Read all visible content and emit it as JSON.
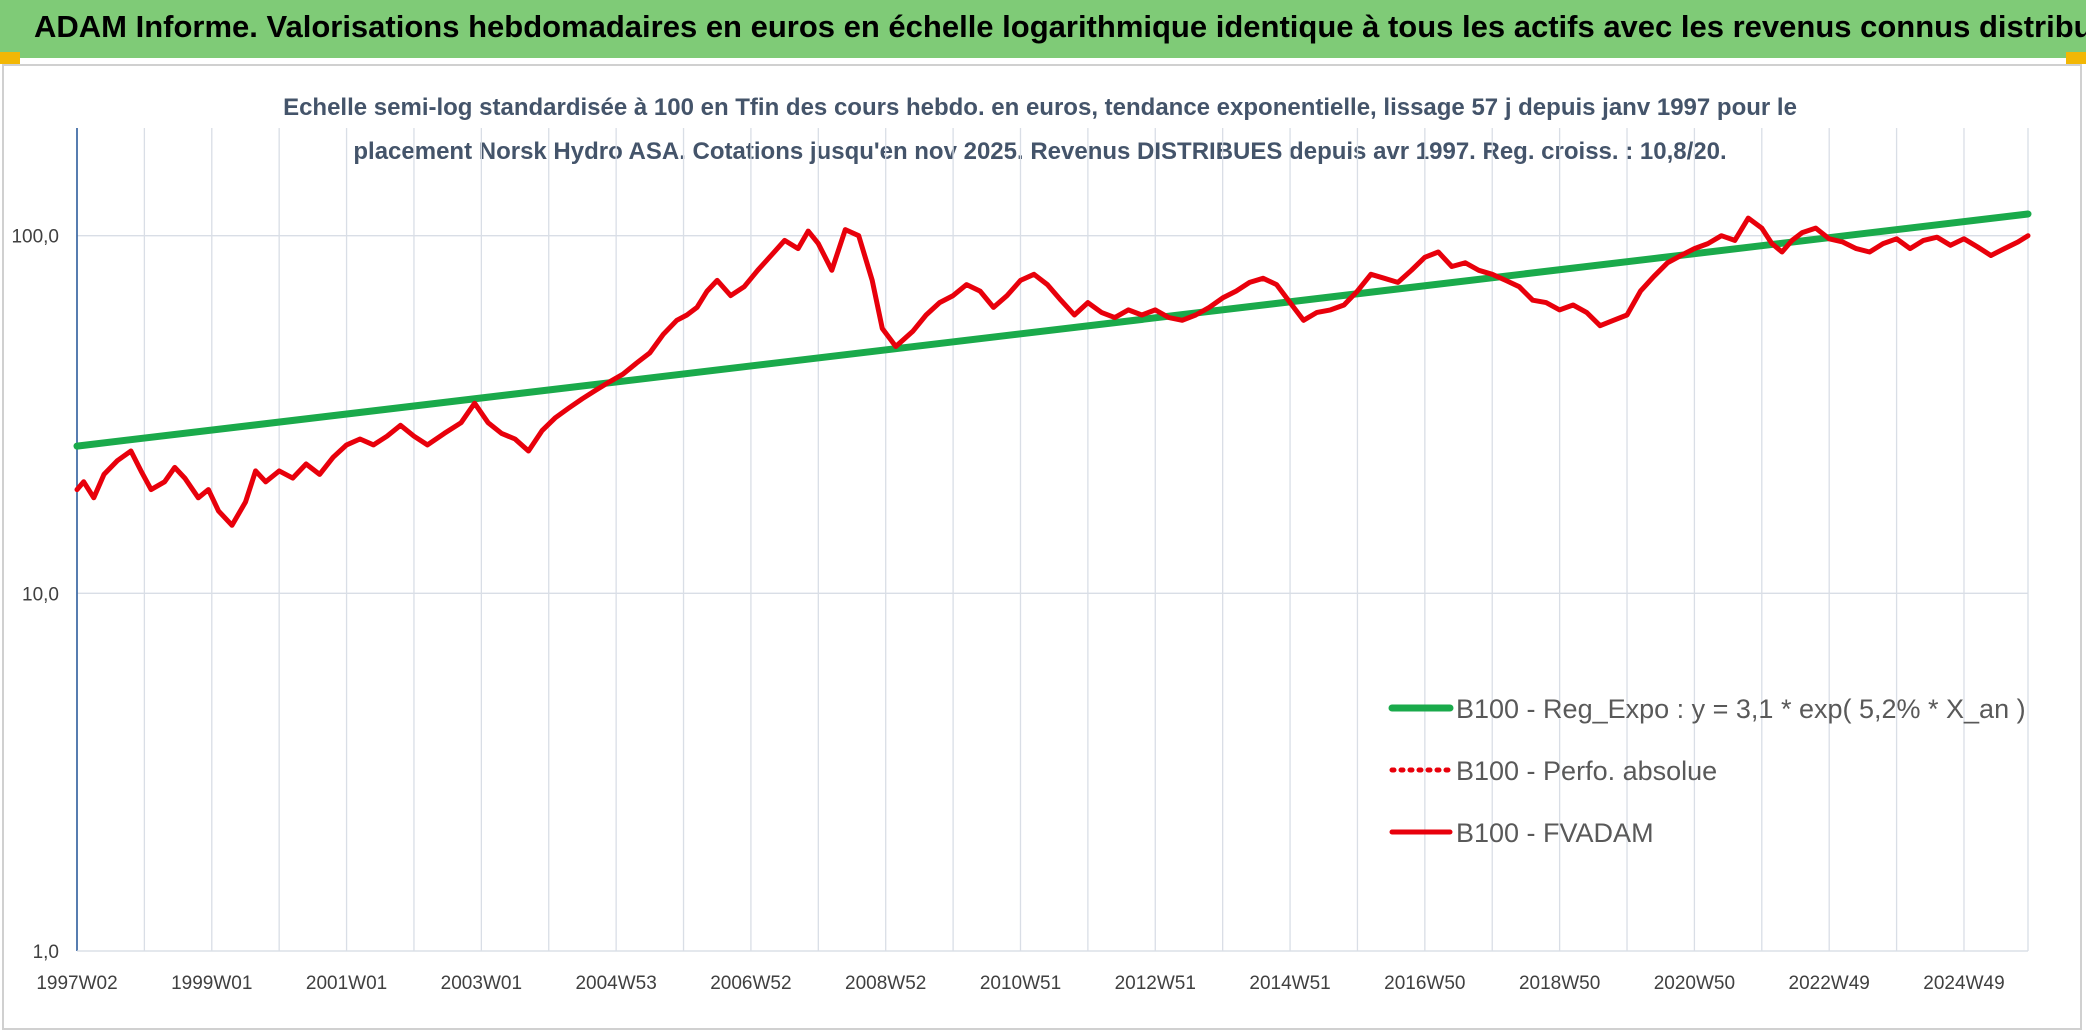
{
  "header": {
    "title": "ADAM Informe. Valorisations hebdomadaires en euros en échelle logarithmique identique à tous les actifs avec les revenus connus distribués"
  },
  "colors": {
    "header_bg": "#7fcb77",
    "corner_accent": "#f2b705",
    "trend": "#1aaa4b",
    "series": "#e8000b",
    "grid": "#d9dee6",
    "axis": "#2f5f9e"
  },
  "chart_data": {
    "type": "line",
    "subtitle_line1": "Echelle semi-log standardisée à 100 en Tfin des cours hebdo. en euros, tendance exponentielle, lissage 57 j depuis janv 1997 pour le",
    "subtitle_line2": "placement Norsk Hydro ASA. Cotations jusqu'en nov 2025. Revenus DISTRIBUES depuis avr 1997. Reg. croiss. : 10,8/20.",
    "y_scale": "log",
    "ylim": [
      1,
      200
    ],
    "y_ticks": [
      {
        "value": 1,
        "label": "1,0"
      },
      {
        "value": 10,
        "label": "10,0"
      },
      {
        "value": 100,
        "label": "100,0"
      }
    ],
    "xlim": [
      1997.0,
      2025.95
    ],
    "x_ticks": [
      {
        "value": 1997.0,
        "label": "1997W02"
      },
      {
        "value": 1999.0,
        "label": "1999W01"
      },
      {
        "value": 2001.0,
        "label": "2001W01"
      },
      {
        "value": 2003.0,
        "label": "2003W01"
      },
      {
        "value": 2005.0,
        "label": "2004W53"
      },
      {
        "value": 2007.0,
        "label": "2006W52"
      },
      {
        "value": 2009.0,
        "label": "2008W52"
      },
      {
        "value": 2011.0,
        "label": "2010W51"
      },
      {
        "value": 2013.0,
        "label": "2012W51"
      },
      {
        "value": 2015.0,
        "label": "2014W51"
      },
      {
        "value": 2017.0,
        "label": "2016W50"
      },
      {
        "value": 2019.0,
        "label": "2018W50"
      },
      {
        "value": 2021.0,
        "label": "2020W50"
      },
      {
        "value": 2023.0,
        "label": "2022W49"
      },
      {
        "value": 2025.0,
        "label": "2024W49"
      }
    ],
    "minor_grid_step_years": 1,
    "legend_position": "bottom-right",
    "series": [
      {
        "name": "B100 - Reg_Expo : y = 3,1 * exp( 5,2% * X_an )",
        "style": "solid-thick",
        "color": "#1aaa4b",
        "x": [
          1997.0,
          2025.95
        ],
        "y": [
          25.8,
          115.0
        ]
      },
      {
        "name": "B100 - Perfo. absolue",
        "style": "dotted",
        "color": "#e8000b",
        "x": [],
        "y": []
      },
      {
        "name": "B100 - FVADAM",
        "style": "solid",
        "color": "#e8000b",
        "x": [
          1997.0,
          1997.1,
          1997.25,
          1997.4,
          1997.6,
          1997.8,
          1997.95,
          1998.1,
          1998.3,
          1998.45,
          1998.6,
          1998.8,
          1998.95,
          1999.1,
          1999.3,
          1999.5,
          1999.65,
          1999.8,
          2000.0,
          2000.2,
          2000.4,
          2000.6,
          2000.8,
          2001.0,
          2001.2,
          2001.4,
          2001.6,
          2001.8,
          2002.0,
          2002.2,
          2002.45,
          2002.7,
          2002.9,
          2003.1,
          2003.3,
          2003.5,
          2003.7,
          2003.9,
          2004.1,
          2004.3,
          2004.5,
          2004.7,
          2004.9,
          2005.1,
          2005.3,
          2005.5,
          2005.7,
          2005.9,
          2006.05,
          2006.2,
          2006.35,
          2006.5,
          2006.7,
          2006.9,
          2007.1,
          2007.3,
          2007.5,
          2007.7,
          2007.85,
          2008.0,
          2008.2,
          2008.4,
          2008.6,
          2008.8,
          2008.95,
          2009.15,
          2009.4,
          2009.6,
          2009.8,
          2010.0,
          2010.2,
          2010.4,
          2010.6,
          2010.8,
          2011.0,
          2011.2,
          2011.4,
          2011.6,
          2011.8,
          2012.0,
          2012.2,
          2012.4,
          2012.6,
          2012.8,
          2013.0,
          2013.2,
          2013.4,
          2013.6,
          2013.8,
          2014.0,
          2014.2,
          2014.4,
          2014.6,
          2014.8,
          2015.0,
          2015.2,
          2015.4,
          2015.6,
          2015.8,
          2016.0,
          2016.2,
          2016.4,
          2016.6,
          2016.8,
          2017.0,
          2017.2,
          2017.4,
          2017.6,
          2017.8,
          2018.0,
          2018.2,
          2018.4,
          2018.6,
          2018.8,
          2019.0,
          2019.2,
          2019.4,
          2019.6,
          2019.8,
          2020.0,
          2020.2,
          2020.4,
          2020.6,
          2020.8,
          2021.0,
          2021.2,
          2021.4,
          2021.6,
          2021.8,
          2022.0,
          2022.15,
          2022.3,
          2022.45,
          2022.6,
          2022.8,
          2023.0,
          2023.2,
          2023.4,
          2023.6,
          2023.8,
          2024.0,
          2024.2,
          2024.4,
          2024.6,
          2024.8,
          2025.0,
          2025.2,
          2025.4,
          2025.6,
          2025.8,
          2025.95
        ],
        "y": [
          19.5,
          20.5,
          18.5,
          21.5,
          23.5,
          25.0,
          22.0,
          19.5,
          20.5,
          22.5,
          21.0,
          18.5,
          19.5,
          17.0,
          15.5,
          18.0,
          22.0,
          20.5,
          22.0,
          21.0,
          23.0,
          21.5,
          24.0,
          26.0,
          27.0,
          26.0,
          27.5,
          29.5,
          27.5,
          26.0,
          28.0,
          30.0,
          34.0,
          30.0,
          28.0,
          27.0,
          25.0,
          28.5,
          31.0,
          33.0,
          35.0,
          37.0,
          39.0,
          41.0,
          44.0,
          47.0,
          53.0,
          58.0,
          60.0,
          63.0,
          70.0,
          75.0,
          68.0,
          72.0,
          80.0,
          88.0,
          97.0,
          92.0,
          103.0,
          95.0,
          80.0,
          104.0,
          100.0,
          75.0,
          55.0,
          49.0,
          54.0,
          60.0,
          65.0,
          68.0,
          73.0,
          70.0,
          63.0,
          68.0,
          75.0,
          78.0,
          73.0,
          66.0,
          60.0,
          65.0,
          61.0,
          59.0,
          62.0,
          60.0,
          62.0,
          59.0,
          58.0,
          60.0,
          63.0,
          67.0,
          70.0,
          74.0,
          76.0,
          73.0,
          65.0,
          58.0,
          61.0,
          62.0,
          64.0,
          70.0,
          78.0,
          76.0,
          74.0,
          80.0,
          87.0,
          90.0,
          82.0,
          84.0,
          80.0,
          78.0,
          75.0,
          72.0,
          66.0,
          65.0,
          62.0,
          64.0,
          61.0,
          56.0,
          58.0,
          60.0,
          70.0,
          77.0,
          84.0,
          88.0,
          92.0,
          95.0,
          100.0,
          97.0,
          112.0,
          105.0,
          95.0,
          90.0,
          97.0,
          102.0,
          105.0,
          98.0,
          96.0,
          92.0,
          90.0,
          95.0,
          98.0,
          92.0,
          97.0,
          99.0,
          94.0,
          98.0,
          93.0,
          88.0,
          92.0,
          96.0,
          100.0
        ]
      }
    ]
  }
}
